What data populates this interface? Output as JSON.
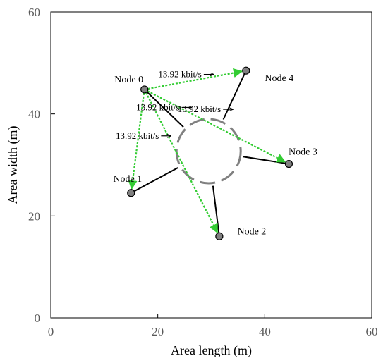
{
  "chart_data": {
    "type": "scatter",
    "xlabel": "Area length (m)",
    "ylabel": "Area width (m)",
    "xlim": [
      0,
      60
    ],
    "ylim": [
      0,
      60
    ],
    "xticks": [
      "0",
      "20",
      "40",
      "60"
    ],
    "yticks": [
      "0",
      "20",
      "40",
      "60"
    ],
    "grid": false,
    "nodes": [
      {
        "label": "Node 0",
        "x": 17.5,
        "y": 44.8
      },
      {
        "label": "Node 1",
        "x": 15.0,
        "y": 24.5
      },
      {
        "label": "Node 2",
        "x": 31.5,
        "y": 16.0
      },
      {
        "label": "Node 3",
        "x": 44.5,
        "y": 30.2
      },
      {
        "label": "Node 4",
        "x": 36.5,
        "y": 48.5
      }
    ],
    "obstacle": {
      "center_x": 29.5,
      "center_y": 32.7,
      "radius": 6
    },
    "links": [
      {
        "from": 0,
        "to": 4,
        "rate": "13.92 kbit/s"
      },
      {
        "from": 0,
        "to": 3,
        "rate": "13.92 kbit/s"
      },
      {
        "from": 0,
        "to": 1,
        "rate": "13.92 kbit/s"
      },
      {
        "from": 0,
        "to": 2,
        "rate": "13.92 kbit/s"
      }
    ],
    "colors": {
      "link": "#33cc33",
      "node": "#808080",
      "obstacle": "#808080",
      "spoke": "#000000"
    }
  }
}
